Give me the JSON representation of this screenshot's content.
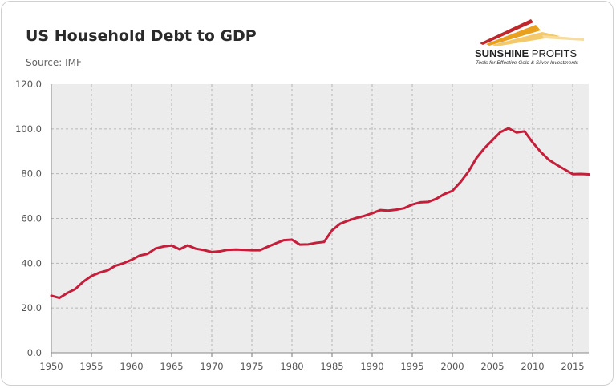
{
  "header": {
    "title": "US Household Debt to GDP",
    "source": "Source: IMF"
  },
  "logo": {
    "name_bold": "SUNSHINE",
    "name_light": " PROFITS",
    "tagline": "Tools for Effective Gold & Silver Investments",
    "colors": {
      "red": "#c0272d",
      "gold": "#e8a01e",
      "light_gold": "#f3c96b"
    }
  },
  "colors": {
    "line": "#c41e3a",
    "plot_background": "#ececec",
    "grid": "#b5b5b5"
  },
  "chart_data": {
    "type": "line",
    "title": "US Household Debt to GDP",
    "subtitle": "Source: IMF",
    "xlabel": "",
    "ylabel": "",
    "xlim": [
      1950,
      2017
    ],
    "ylim": [
      0,
      120
    ],
    "grid": true,
    "x_ticks": [
      1950,
      1955,
      1960,
      1965,
      1970,
      1975,
      1980,
      1985,
      1990,
      1995,
      2000,
      2005,
      2010,
      2015
    ],
    "y_ticks": [
      "0.0",
      "20.0",
      "40.0",
      "60.0",
      "80.0",
      "100.0",
      "120.0"
    ],
    "series": [
      {
        "x": [
          1950,
          1951,
          1952,
          1953,
          1954,
          1955,
          1956,
          1957,
          1958,
          1959,
          1960,
          1961,
          1962,
          1963,
          1964,
          1965,
          1966,
          1967,
          1968,
          1969,
          1970,
          1971,
          1972,
          1973,
          1974,
          1975,
          1976,
          1977,
          1978,
          1979,
          1980,
          1981,
          1982,
          1983,
          1984,
          1985,
          1986,
          1987,
          1988,
          1989,
          1990,
          1991,
          1992,
          1993,
          1994,
          1995,
          1996,
          1997,
          1998,
          1999,
          2000,
          2001,
          2002,
          2003,
          2004,
          2005,
          2006,
          2007,
          2008,
          2009,
          2010,
          2011,
          2012,
          2013,
          2014,
          2015,
          2016,
          2017
        ],
        "values": [
          25.5,
          24.5,
          26.7,
          28.5,
          31.8,
          34.3,
          35.8,
          36.8,
          38.9,
          40.0,
          41.5,
          43.4,
          44.2,
          46.6,
          47.5,
          47.9,
          46.2,
          48.0,
          46.5,
          45.9,
          45.0,
          45.3,
          46.0,
          46.1,
          46.0,
          45.8,
          45.8,
          47.4,
          48.9,
          50.3,
          50.5,
          48.3,
          48.4,
          49.1,
          49.5,
          54.7,
          57.6,
          59.0,
          60.2,
          61.1,
          62.3,
          63.7,
          63.5,
          63.9,
          64.6,
          66.2,
          67.2,
          67.4,
          68.8,
          70.9,
          72.3,
          76.2,
          80.9,
          87.0,
          91.4,
          95.0,
          98.6,
          100.3,
          98.4,
          98.9,
          94.0,
          89.8,
          86.3,
          84.0,
          81.9,
          79.8,
          79.9,
          79.7
        ]
      }
    ]
  }
}
